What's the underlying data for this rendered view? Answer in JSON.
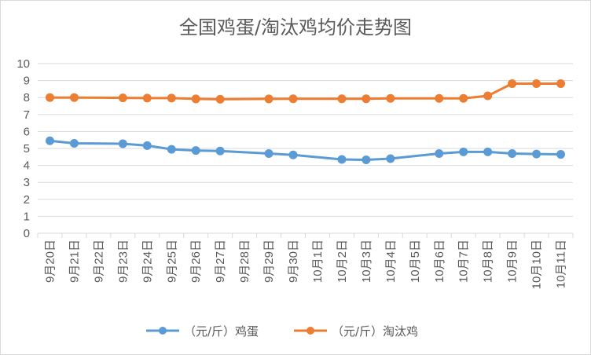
{
  "chart_data": {
    "type": "line",
    "title": "全国鸡蛋/淘汰鸡均价走势图",
    "categories": [
      "9月20日",
      "9月21日",
      "9月22日",
      "9月23日",
      "9月24日",
      "9月25日",
      "9月26日",
      "9月27日",
      "9月28日",
      "9月29日",
      "9月30日",
      "10月1日",
      "10月2日",
      "10月3日",
      "10月4日",
      "10月5日",
      "10月6日",
      "10月7日",
      "10月8日",
      "10月9日",
      "10月10日",
      "10月11日"
    ],
    "ylim": [
      0,
      10
    ],
    "yticks": [
      "0",
      "1",
      "2",
      "3",
      "4",
      "5",
      "6",
      "7",
      "8",
      "9",
      "10"
    ],
    "grid": true,
    "legend_position": "bottom",
    "series": [
      {
        "name": "（元/斤）鸡蛋",
        "color": "#5b9bd5",
        "values": [
          5.45,
          5.3,
          null,
          5.28,
          5.17,
          4.95,
          4.88,
          4.85,
          null,
          4.7,
          4.62,
          null,
          4.35,
          4.33,
          4.4,
          null,
          4.7,
          4.8,
          4.8,
          4.7,
          4.67,
          4.65
        ]
      },
      {
        "name": "（元/斤）淘汰鸡",
        "color": "#ed7d31",
        "values": [
          8.0,
          8.0,
          null,
          7.98,
          7.97,
          7.97,
          7.92,
          7.9,
          null,
          7.92,
          7.93,
          null,
          7.93,
          7.93,
          7.95,
          null,
          7.95,
          7.95,
          8.1,
          8.82,
          8.82,
          8.82
        ]
      }
    ]
  }
}
